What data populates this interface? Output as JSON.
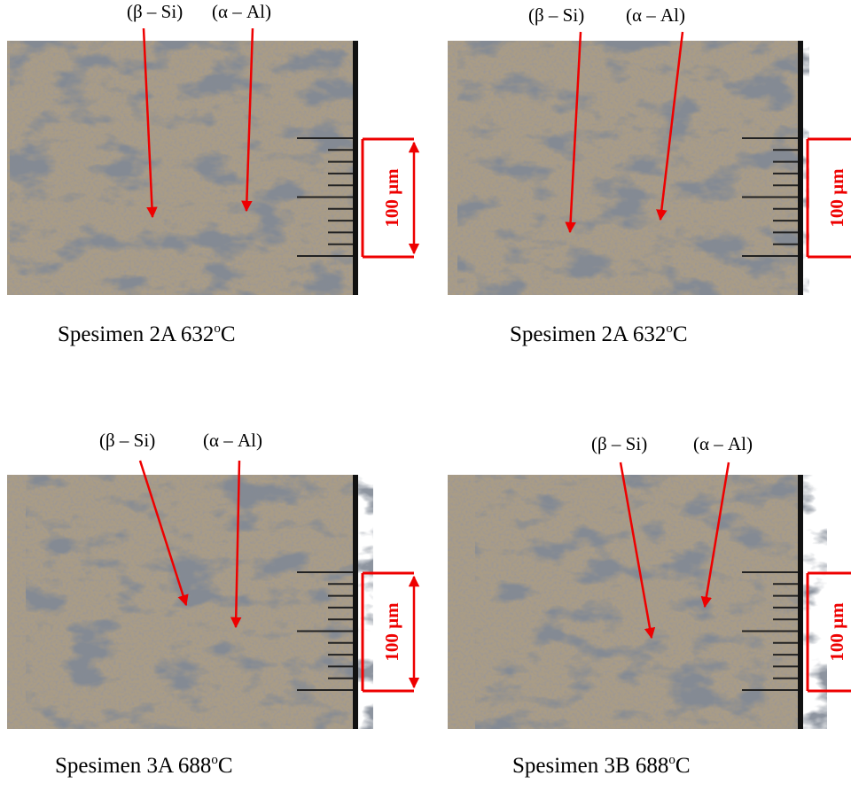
{
  "panels": [
    {
      "beta_label": "(β – Si)",
      "alpha_label": "(α – Al)",
      "scale": "100 µm",
      "caption": {
        "text": "Spesimen 2A 632",
        "sup": "o",
        "unit": "C"
      }
    },
    {
      "beta_label": "(β – Si)",
      "alpha_label": "(α – Al)",
      "scale": "100 µm",
      "caption": {
        "text": "Spesimen 2A 632",
        "sup": "o",
        "unit": "C"
      }
    },
    {
      "beta_label": "(β – Si)",
      "alpha_label": "(α – Al)",
      "scale": "100 µm",
      "caption": {
        "text": "Spesimen 3A 688",
        "sup": "o",
        "unit": "C"
      }
    },
    {
      "beta_label": "(β – Si)",
      "alpha_label": "(α – Al)",
      "scale": "100 µm",
      "caption": {
        "text": "Spesimen 3B 688",
        "sup": "o",
        "unit": "C"
      }
    }
  ]
}
